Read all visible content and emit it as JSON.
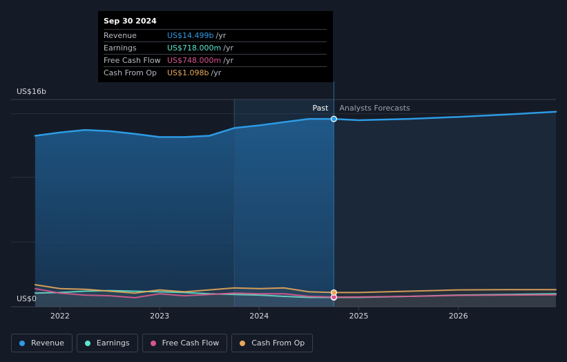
{
  "tooltip": {
    "date": "Sep 30 2024",
    "rows": [
      {
        "label": "Revenue",
        "value": "US$14.499b",
        "unit": "/yr",
        "color": "#2d9be5"
      },
      {
        "label": "Earnings",
        "value": "US$718.000m",
        "unit": "/yr",
        "color": "#5ce6d0"
      },
      {
        "label": "Free Cash Flow",
        "value": "US$748.000m",
        "unit": "/yr",
        "color": "#d95592"
      },
      {
        "label": "Cash From Op",
        "value": "US$1.098b",
        "unit": "/yr",
        "color": "#e8a85a"
      }
    ]
  },
  "legend": [
    {
      "label": "Revenue",
      "color": "#2d9be5"
    },
    {
      "label": "Earnings",
      "color": "#5ce6d0"
    },
    {
      "label": "Free Cash Flow",
      "color": "#d95592"
    },
    {
      "label": "Cash From Op",
      "color": "#e8a85a"
    }
  ],
  "chart_data": {
    "type": "line",
    "ylabel_top": "US$16b",
    "ylabel_bottom": "US$0",
    "ylim": [
      0,
      16
    ],
    "xlim": [
      2021.73,
      2026.98
    ],
    "x_ticks": [
      {
        "value": 2022,
        "label": "2022"
      },
      {
        "value": 2023,
        "label": "2023"
      },
      {
        "value": 2024,
        "label": "2024"
      },
      {
        "value": 2025,
        "label": "2025"
      },
      {
        "value": 2026,
        "label": "2026"
      }
    ],
    "divider_x": 2024.75,
    "highlight_start_x": 2023.75,
    "past_label": "Past",
    "forecast_label": "Analysts Forecasts",
    "series": [
      {
        "name": "Revenue",
        "color": "#2d9be5",
        "points": [
          [
            2021.75,
            13.2
          ],
          [
            2022.0,
            13.45
          ],
          [
            2022.25,
            13.65
          ],
          [
            2022.5,
            13.55
          ],
          [
            2022.75,
            13.35
          ],
          [
            2023.0,
            13.1
          ],
          [
            2023.25,
            13.1
          ],
          [
            2023.5,
            13.2
          ],
          [
            2023.75,
            13.8
          ],
          [
            2024.0,
            14.0
          ],
          [
            2024.25,
            14.25
          ],
          [
            2024.5,
            14.5
          ],
          [
            2024.75,
            14.5
          ],
          [
            2025.0,
            14.4
          ],
          [
            2025.5,
            14.5
          ],
          [
            2026.0,
            14.65
          ],
          [
            2026.5,
            14.85
          ],
          [
            2026.98,
            15.05
          ]
        ]
      },
      {
        "name": "Earnings",
        "color": "#5ce6d0",
        "points": [
          [
            2021.75,
            1.05
          ],
          [
            2022.0,
            1.1
          ],
          [
            2022.25,
            1.2
          ],
          [
            2022.5,
            1.25
          ],
          [
            2022.75,
            1.2
          ],
          [
            2023.0,
            1.15
          ],
          [
            2023.25,
            1.1
          ],
          [
            2023.5,
            1.0
          ],
          [
            2023.75,
            0.95
          ],
          [
            2024.0,
            0.9
          ],
          [
            2024.25,
            0.8
          ],
          [
            2024.5,
            0.72
          ],
          [
            2024.75,
            0.718
          ],
          [
            2025.0,
            0.72
          ],
          [
            2025.5,
            0.8
          ],
          [
            2026.0,
            0.9
          ],
          [
            2026.5,
            0.95
          ],
          [
            2026.98,
            1.0
          ]
        ]
      },
      {
        "name": "Free Cash Flow",
        "color": "#d95592",
        "points": [
          [
            2021.75,
            1.4
          ],
          [
            2022.0,
            1.05
          ],
          [
            2022.25,
            0.9
          ],
          [
            2022.5,
            0.85
          ],
          [
            2022.75,
            0.7
          ],
          [
            2023.0,
            1.0
          ],
          [
            2023.25,
            0.85
          ],
          [
            2023.5,
            0.95
          ],
          [
            2023.75,
            1.05
          ],
          [
            2024.0,
            1.0
          ],
          [
            2024.25,
            1.0
          ],
          [
            2024.5,
            0.8
          ],
          [
            2024.75,
            0.748
          ],
          [
            2025.0,
            0.75
          ],
          [
            2025.5,
            0.8
          ],
          [
            2026.0,
            0.88
          ],
          [
            2026.5,
            0.9
          ],
          [
            2026.98,
            0.92
          ]
        ]
      },
      {
        "name": "Cash From Op",
        "color": "#e8a85a",
        "points": [
          [
            2021.75,
            1.7
          ],
          [
            2022.0,
            1.4
          ],
          [
            2022.25,
            1.35
          ],
          [
            2022.5,
            1.2
          ],
          [
            2022.75,
            1.05
          ],
          [
            2023.0,
            1.3
          ],
          [
            2023.25,
            1.15
          ],
          [
            2023.5,
            1.3
          ],
          [
            2023.75,
            1.45
          ],
          [
            2024.0,
            1.4
          ],
          [
            2024.25,
            1.45
          ],
          [
            2024.5,
            1.15
          ],
          [
            2024.75,
            1.098
          ],
          [
            2025.0,
            1.1
          ],
          [
            2025.5,
            1.2
          ],
          [
            2026.0,
            1.3
          ],
          [
            2026.5,
            1.32
          ],
          [
            2026.98,
            1.32
          ]
        ]
      }
    ]
  }
}
